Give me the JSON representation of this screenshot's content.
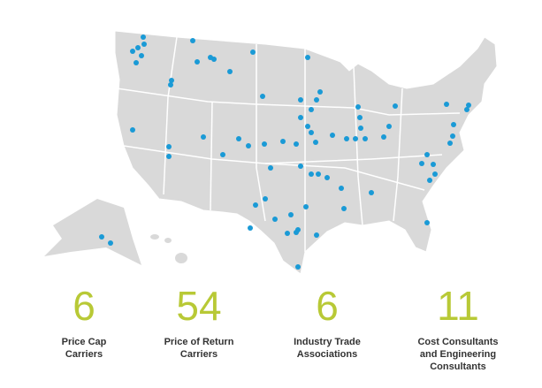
{
  "stats": [
    {
      "number": 6,
      "label": "Price Cap Carriers"
    },
    {
      "number": 54,
      "label": "Price of Return Carriers"
    },
    {
      "number": 6,
      "label": "Industry Trade Associations"
    },
    {
      "number": 11,
      "label": "Cost Consultants and Engineering Consultants"
    }
  ]
}
